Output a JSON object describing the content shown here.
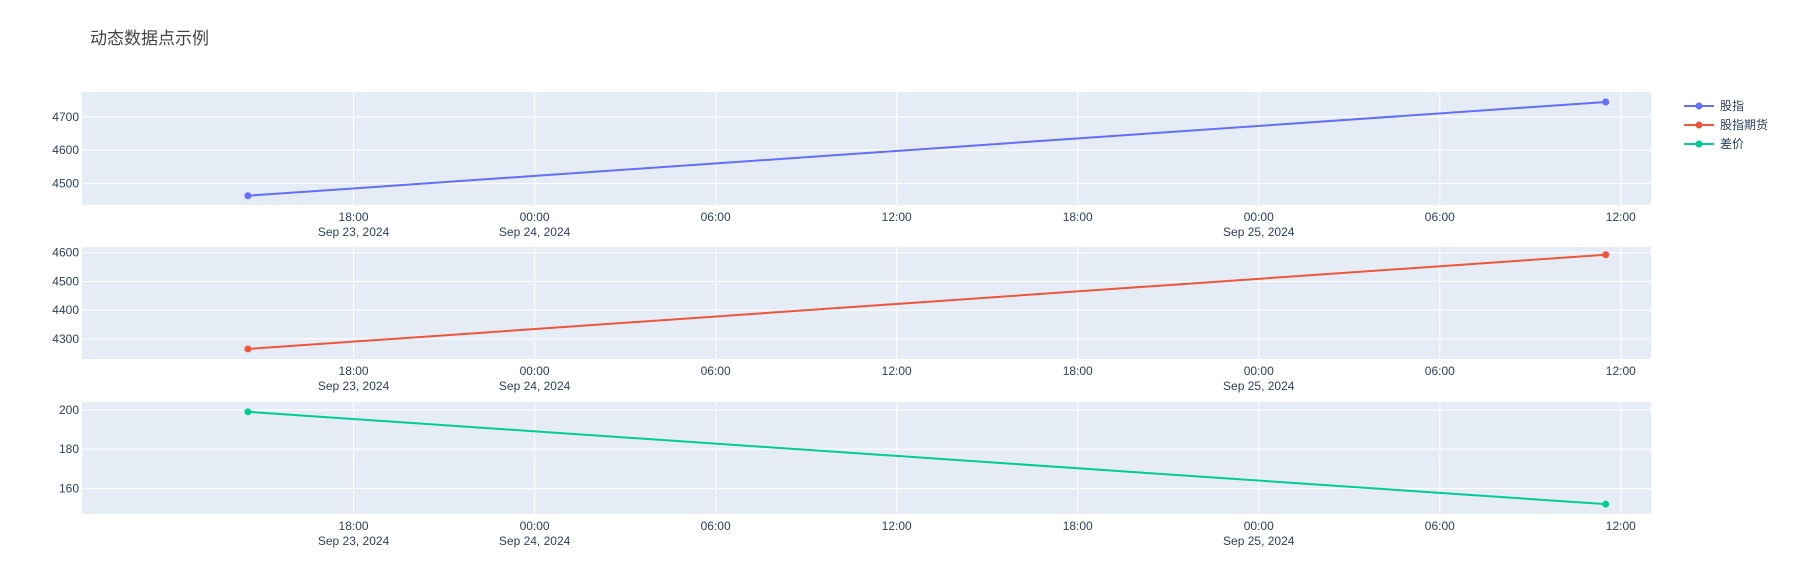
{
  "title": "动态数据点示例",
  "chart_data": {
    "type": "line",
    "title": "动态数据点示例",
    "legend_placement": "top-right",
    "grid": true,
    "x_axis": {
      "type": "date",
      "ticks": [
        {
          "value": "2024-09-23T18:00",
          "label": "18:00",
          "date_label": "Sep 23, 2024"
        },
        {
          "value": "2024-09-24T00:00",
          "label": "00:00",
          "date_label": "Sep 24, 2024"
        },
        {
          "value": "2024-09-24T06:00",
          "label": "06:00",
          "date_label": ""
        },
        {
          "value": "2024-09-24T12:00",
          "label": "12:00",
          "date_label": ""
        },
        {
          "value": "2024-09-24T18:00",
          "label": "18:00",
          "date_label": ""
        },
        {
          "value": "2024-09-25T00:00",
          "label": "00:00",
          "date_label": "Sep 25, 2024"
        },
        {
          "value": "2024-09-25T06:00",
          "label": "06:00",
          "date_label": ""
        },
        {
          "value": "2024-09-25T12:00",
          "label": "12:00",
          "date_label": ""
        }
      ],
      "range": [
        "2024-09-23T09:00",
        "2024-09-25T13:00"
      ]
    },
    "subplots": [
      {
        "series": [
          {
            "name": "股指",
            "color": "#636efa",
            "x": [
              "2024-09-23T14:30",
              "2024-09-25T11:30"
            ],
            "y": [
              4463,
              4745
            ]
          }
        ],
        "ylim": [
          4435,
          4775
        ],
        "yticks": [
          4500,
          4600,
          4700
        ]
      },
      {
        "series": [
          {
            "name": "股指期货",
            "color": "#ef553b",
            "x": [
              "2024-09-23T14:30",
              "2024-09-25T11:30"
            ],
            "y": [
              4265,
              4593
            ]
          }
        ],
        "ylim": [
          4230,
          4620
        ],
        "yticks": [
          4300,
          4400,
          4500,
          4600
        ]
      },
      {
        "series": [
          {
            "name": "差价",
            "color": "#00cc96",
            "x": [
              "2024-09-23T14:30",
              "2024-09-25T11:30"
            ],
            "y": [
              199,
              152
            ]
          }
        ],
        "ylim": [
          147,
          204
        ],
        "yticks": [
          160,
          180,
          200
        ]
      }
    ]
  }
}
